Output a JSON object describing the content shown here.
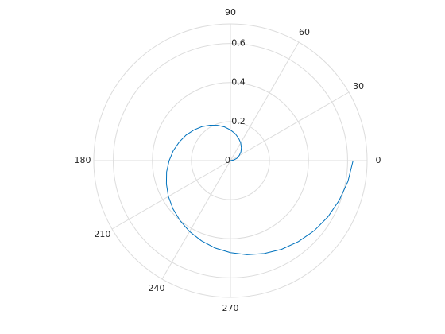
{
  "chart_data": {
    "type": "polar",
    "theta": [
      0,
      10,
      20,
      30,
      40,
      50,
      60,
      70,
      80,
      90,
      100,
      110,
      120,
      130,
      140,
      150,
      160,
      170,
      180,
      190,
      200,
      210,
      220,
      230,
      240,
      250,
      260,
      270,
      280,
      290,
      300,
      310,
      320,
      330,
      340,
      350,
      360
    ],
    "series": [
      {
        "color": "#0072bd",
        "values": [
          0,
          0.017,
          0.035,
          0.052,
          0.07,
          0.087,
          0.105,
          0.122,
          0.14,
          0.157,
          0.175,
          0.192,
          0.209,
          0.227,
          0.244,
          0.262,
          0.279,
          0.297,
          0.314,
          0.332,
          0.349,
          0.367,
          0.384,
          0.401,
          0.419,
          0.436,
          0.454,
          0.471,
          0.489,
          0.506,
          0.524,
          0.541,
          0.559,
          0.576,
          0.593,
          0.611,
          0.628
        ]
      }
    ],
    "rlim": [
      0,
      0.7
    ],
    "rticks": [
      0,
      0.2,
      0.4,
      0.6
    ],
    "thetaticks": [
      0,
      30,
      60,
      90,
      180,
      210,
      240,
      270
    ],
    "grid": true
  }
}
